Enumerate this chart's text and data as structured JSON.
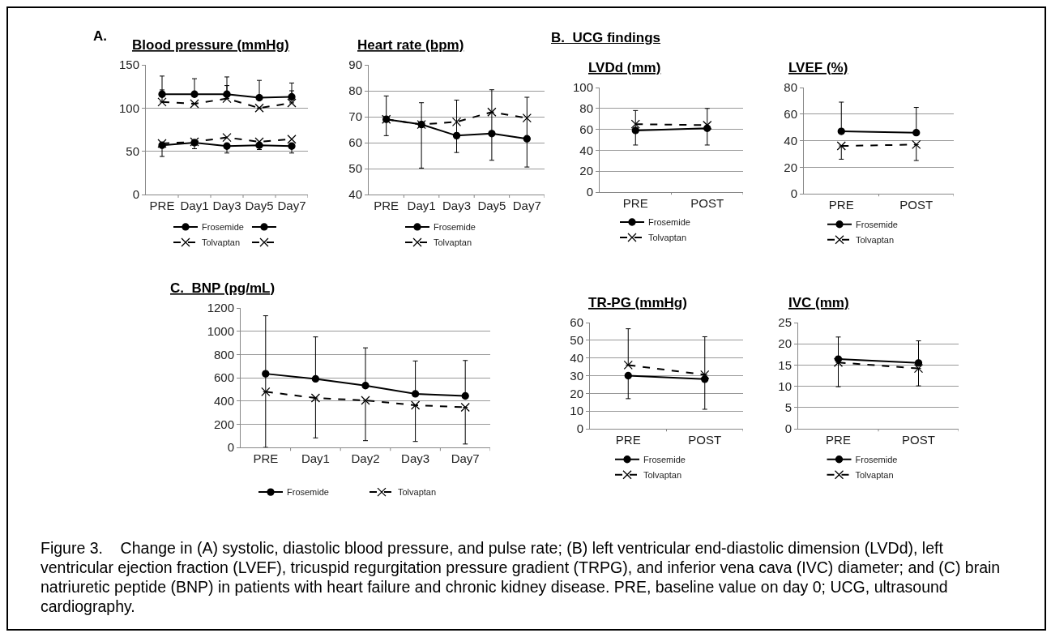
{
  "chart_data": [
    {
      "type": "line",
      "title": "Blood pressure (mmHg)",
      "annotations": [
        "A."
      ],
      "categories": [
        "PRE",
        "Day1",
        "Day3",
        "Day5",
        "Day7"
      ],
      "ylim": [
        0,
        150
      ],
      "yticks": [
        0,
        50,
        100,
        150
      ],
      "grid": "y",
      "legend": "bottom",
      "series": [
        {
          "name": "Frosemide",
          "color": "#000000",
          "marker": "circle",
          "line_style": "solid",
          "values": [
            116,
            116,
            116,
            112,
            113
          ],
          "errors": [
            [
              116,
              137
            ],
            [
              116,
              134
            ],
            [
              116,
              136
            ],
            [
              112,
              132
            ],
            [
              113,
              129
            ]
          ]
        },
        {
          "color": "#000000",
          "marker": "circle",
          "line_style": "solid",
          "values": [
            57,
            60,
            56,
            57,
            56
          ],
          "errors": [
            [
              44,
              57
            ],
            [
              53,
              60
            ],
            [
              48,
              56
            ],
            [
              52,
              57
            ],
            [
              48,
              56
            ]
          ]
        },
        {
          "name": "Tolvaptan",
          "color": "#000000",
          "marker": "cross",
          "line_style": "dashed",
          "values": [
            107,
            105,
            111,
            100,
            106
          ],
          "errors": [
            [
              107,
              121
            ],
            null,
            [
              111,
              126
            ],
            null,
            [
              106,
              120
            ]
          ]
        },
        {
          "color": "#000000",
          "marker": "cross",
          "line_style": "dashed",
          "values": [
            59,
            61,
            66,
            61,
            64
          ]
        }
      ]
    },
    {
      "type": "line",
      "title": "Heart rate (bpm)",
      "categories": [
        "PRE",
        "Day1",
        "Day3",
        "Day5",
        "Day7"
      ],
      "ylim": [
        40,
        90
      ],
      "yticks": [
        40,
        50,
        60,
        70,
        80,
        90
      ],
      "grid": "y",
      "legend": "bottom",
      "series": [
        {
          "name": "Frosemide",
          "color": "#000000",
          "marker": "circle",
          "line_style": "solid",
          "values": [
            69,
            67,
            62.7,
            63.5,
            61.5
          ],
          "errors": [
            [
              62.7,
              78
            ],
            [
              50.2,
              75.4
            ],
            [
              56.2,
              76.4
            ],
            [
              53.2,
              80.4
            ],
            [
              50.6,
              77.5
            ]
          ]
        },
        {
          "name": "Tolvaptan",
          "color": "#000000",
          "marker": "cross",
          "line_style": "dashed",
          "values": [
            69,
            67,
            68,
            71.8,
            69.5
          ]
        }
      ]
    },
    {
      "type": "line",
      "title": "LVDd (mm)",
      "annotations": [
        "B.  UCG findings"
      ],
      "categories": [
        "PRE",
        "POST"
      ],
      "ylim": [
        0,
        100
      ],
      "yticks": [
        0,
        20,
        40,
        60,
        80,
        100
      ],
      "grid": "y",
      "legend": "bottom",
      "series": [
        {
          "name": "Frosemide",
          "color": "#000000",
          "marker": "circle",
          "line_style": "solid",
          "values": [
            59,
            61
          ],
          "errors": [
            [
              45,
              78
            ],
            [
              45,
              80
            ]
          ]
        },
        {
          "name": "Tolvaptan",
          "color": "#000000",
          "marker": "cross",
          "line_style": "dashed",
          "values": [
            65,
            64
          ]
        }
      ]
    },
    {
      "type": "line",
      "title": "LVEF (%)",
      "categories": [
        "PRE",
        "POST"
      ],
      "ylim": [
        0,
        80
      ],
      "yticks": [
        0,
        20,
        40,
        60,
        80
      ],
      "grid": "y",
      "legend": "bottom",
      "series": [
        {
          "name": "Frosemide",
          "color": "#000000",
          "marker": "circle",
          "line_style": "solid",
          "values": [
            47,
            46
          ],
          "errors": [
            [
              47,
              69
            ],
            [
              46,
              65
            ]
          ]
        },
        {
          "name": "Tolvaptan",
          "color": "#000000",
          "marker": "cross",
          "line_style": "dashed",
          "values": [
            36,
            37
          ],
          "errors": [
            [
              26,
              36
            ],
            [
              25,
              37
            ]
          ]
        }
      ]
    },
    {
      "type": "line",
      "title": "TR-PG (mmHg)",
      "categories": [
        "PRE",
        "POST"
      ],
      "ylim": [
        0,
        60
      ],
      "yticks": [
        0,
        10,
        20,
        30,
        40,
        50,
        60
      ],
      "grid": "y",
      "legend": "bottom",
      "series": [
        {
          "name": "Frosemide",
          "color": "#000000",
          "marker": "circle",
          "line_style": "solid",
          "values": [
            30,
            28
          ],
          "errors": [
            [
              17,
              30
            ],
            [
              11,
              28
            ]
          ]
        },
        {
          "name": "Tolvaptan",
          "color": "#000000",
          "marker": "cross",
          "line_style": "dashed",
          "values": [
            36,
            30.5
          ],
          "errors": [
            [
              36,
              56.5
            ],
            [
              30.5,
              52
            ]
          ]
        }
      ]
    },
    {
      "type": "line",
      "title": "IVC (mm)",
      "categories": [
        "PRE",
        "POST"
      ],
      "ylim": [
        0,
        25
      ],
      "yticks": [
        0,
        5,
        10,
        15,
        20,
        25
      ],
      "grid": "y",
      "legend": "bottom",
      "series": [
        {
          "name": "Frosemide",
          "color": "#000000",
          "marker": "circle",
          "line_style": "solid",
          "values": [
            16.4,
            15.5
          ],
          "errors": [
            [
              16.4,
              21.6
            ],
            [
              15.5,
              20.7
            ]
          ]
        },
        {
          "name": "Tolvaptan",
          "color": "#000000",
          "marker": "cross",
          "line_style": "dashed",
          "values": [
            15.6,
            14.2
          ],
          "errors": [
            [
              9.9,
              15.6
            ],
            [
              10.1,
              14.2
            ]
          ]
        }
      ]
    },
    {
      "type": "line",
      "title": "C.  BNP (pg/mL)",
      "annotations": [
        "Figure 3.    Change in (A) systolic, diastolic blood pressure, and pulse rate; (B) left ventricular end-diastolic dimension (LVDd), left ventricular ejection fraction (LVEF), tricuspid regurgitation pressure gradient (TRPG), and inferior vena cava (IVC) diameter; and (C) brain natriuretic peptide (BNP) in patients with heart failure and chronic kidney disease. PRE, baseline value on day 0; UCG, ultrasound cardiography."
      ],
      "categories": [
        "PRE",
        "Day1",
        "Day2",
        "Day3",
        "Day7"
      ],
      "ylim": [
        0,
        1200
      ],
      "yticks": [
        0,
        200,
        400,
        600,
        800,
        1000,
        1200
      ],
      "grid": "y",
      "legend": "bottom",
      "series": [
        {
          "name": "Frosemide",
          "color": "#000000",
          "marker": "circle",
          "line_style": "solid",
          "values": [
            634,
            590,
            532,
            461,
            443
          ],
          "errors": [
            [
              0,
              1133
            ],
            [
              590,
              951
            ],
            [
              532,
              857
            ],
            [
              461,
              744
            ],
            [
              443,
              748
            ]
          ]
        },
        {
          "name": "Tolvaptan",
          "color": "#000000",
          "marker": "cross",
          "line_style": "dashed",
          "values": [
            479,
            425,
            405,
            363,
            345
          ],
          "errors": [
            null,
            [
              82,
              425
            ],
            [
              58,
              405
            ],
            [
              51,
              363
            ],
            [
              29,
              345
            ]
          ]
        }
      ]
    }
  ]
}
